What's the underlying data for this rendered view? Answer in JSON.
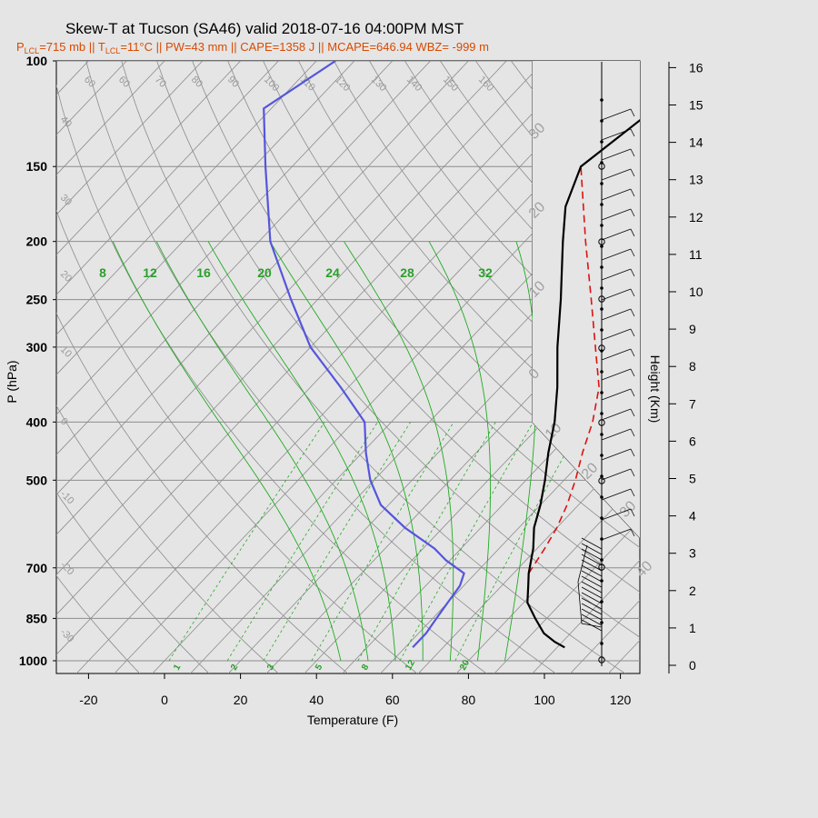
{
  "chart_data": {
    "type": "skew-t",
    "title": "Skew-T at Tucson (SA46) valid 2018-07-16 04:00PM MST",
    "subtitle": {
      "lcl_pressure": "P",
      "lcl_pressure_sub": "LCL",
      "lcl_pressure_value": "=715 mb || T",
      "lcl_temp_sub": "LCL",
      "rest": "=11°C || PW=43 mm || CAPE=1358 J || MCAPE=646.94 WBZ= -999 m"
    },
    "xlabel": "Temperature (F)",
    "ylabel": "P (hPa)",
    "y2label": "Height (Km)",
    "xlim": [
      -28,
      125
    ],
    "x_ticks": [
      -20,
      0,
      20,
      40,
      60,
      80,
      100,
      120
    ],
    "pressure_ticks": [
      100,
      150,
      200,
      250,
      300,
      400,
      500,
      700,
      850,
      1000
    ],
    "height_ticks": [
      0,
      1,
      2,
      3,
      4,
      5,
      6,
      7,
      8,
      9,
      10,
      11,
      12,
      13,
      14,
      15,
      16
    ],
    "isotherm_labels": [
      "60",
      "60",
      "70",
      "80",
      "90",
      "100",
      "110",
      "120",
      "130",
      "140",
      "150",
      "160"
    ],
    "left_isotherm_labels": [
      "40",
      "30",
      "20",
      "10",
      "0",
      "-10",
      "-20",
      "-30"
    ],
    "dry_adiabat_labels": [
      "30",
      "20",
      "10",
      "0",
      "10",
      "20",
      "30",
      "40"
    ],
    "saturated_adiabat_labels": [
      "8",
      "12",
      "16",
      "20",
      "24",
      "28",
      "32"
    ],
    "mixing_ratio_labels": [
      "1",
      "2",
      "3",
      "5",
      "8",
      "12",
      "20"
    ],
    "temperature_profile": [
      {
        "p": 950,
        "t": 102
      },
      {
        "p": 930,
        "t": 98
      },
      {
        "p": 900,
        "t": 93
      },
      {
        "p": 850,
        "t": 87
      },
      {
        "p": 800,
        "t": 81
      },
      {
        "p": 750,
        "t": 77
      },
      {
        "p": 715,
        "t": 74
      },
      {
        "p": 650,
        "t": 69
      },
      {
        "p": 600,
        "t": 64
      },
      {
        "p": 550,
        "t": 60
      },
      {
        "p": 500,
        "t": 55
      },
      {
        "p": 450,
        "t": 49
      },
      {
        "p": 400,
        "t": 43
      },
      {
        "p": 350,
        "t": 35
      },
      {
        "p": 300,
        "t": 25
      },
      {
        "p": 250,
        "t": 14
      },
      {
        "p": 200,
        "t": 0
      },
      {
        "p": 175,
        "t": -8
      },
      {
        "p": 150,
        "t": -14
      },
      {
        "p": 120,
        "t": -9
      },
      {
        "p": 100,
        "t": -5
      }
    ],
    "dewpoint_profile": [
      {
        "p": 950,
        "t": 62
      },
      {
        "p": 900,
        "t": 62
      },
      {
        "p": 850,
        "t": 61
      },
      {
        "p": 800,
        "t": 60
      },
      {
        "p": 750,
        "t": 59
      },
      {
        "p": 715,
        "t": 57
      },
      {
        "p": 680,
        "t": 49
      },
      {
        "p": 650,
        "t": 43
      },
      {
        "p": 600,
        "t": 30
      },
      {
        "p": 550,
        "t": 18
      },
      {
        "p": 500,
        "t": 9
      },
      {
        "p": 450,
        "t": 1
      },
      {
        "p": 400,
        "t": -7
      },
      {
        "p": 350,
        "t": -22
      },
      {
        "p": 300,
        "t": -40
      },
      {
        "p": 250,
        "t": -57
      },
      {
        "p": 200,
        "t": -77
      },
      {
        "p": 150,
        "t": -97
      },
      {
        "p": 120,
        "t": -112
      },
      {
        "p": 100,
        "t": -105
      }
    ],
    "parcel_profile": [
      {
        "p": 715,
        "t": 74
      },
      {
        "p": 650,
        "t": 72
      },
      {
        "p": 600,
        "t": 70
      },
      {
        "p": 550,
        "t": 67
      },
      {
        "p": 500,
        "t": 63
      },
      {
        "p": 450,
        "t": 58
      },
      {
        "p": 400,
        "t": 53
      },
      {
        "p": 350,
        "t": 46
      },
      {
        "p": 300,
        "t": 35
      },
      {
        "p": 250,
        "t": 22
      },
      {
        "p": 200,
        "t": 6
      },
      {
        "p": 150,
        "t": -14
      }
    ],
    "colors": {
      "temperature": "#000000",
      "dewpoint": "#5555dd",
      "parcel": "#dd1111",
      "moist_adiabat": "#22aa22",
      "mixing_ratio": "#22aa22",
      "grid": "#8c8c8c",
      "subtitle": "#d84a00"
    },
    "grid": true
  }
}
